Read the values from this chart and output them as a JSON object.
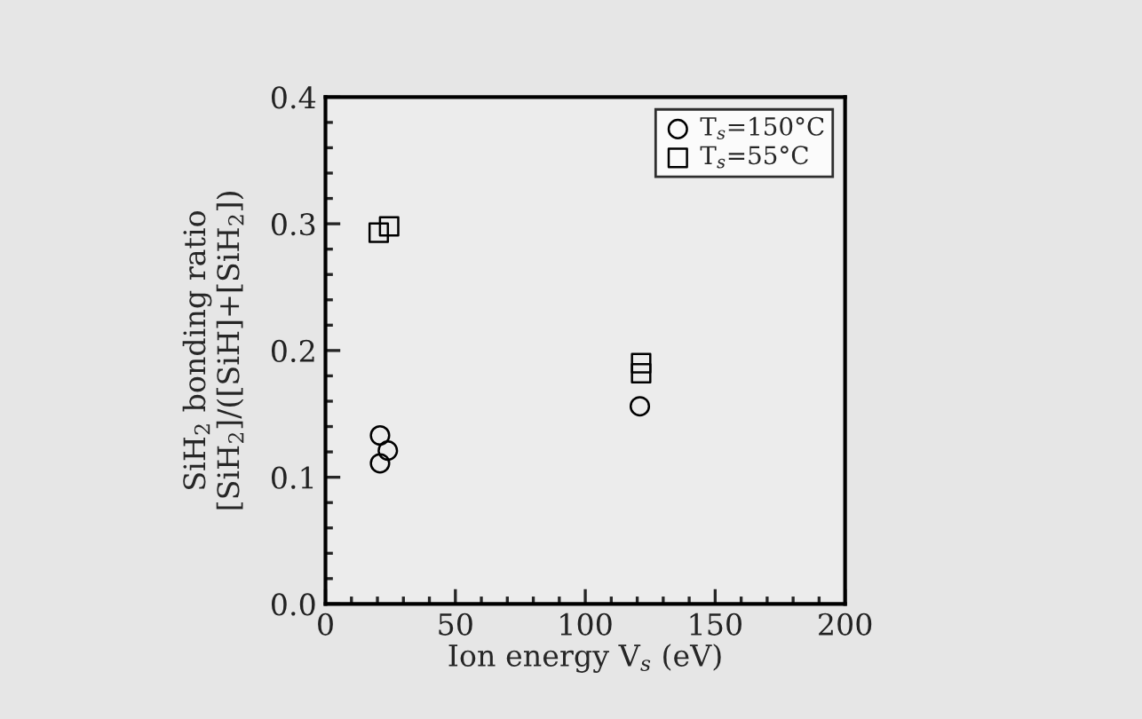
{
  "chart_data": {
    "type": "scatter",
    "xlabel": "Ion energy V$_{s}$ (eV)",
    "ylabel": "SiH$_{2}$ bonding ratio\n[SiH$_{2}$]/([SiH]+[SiH$_{2}$])",
    "series": [
      {
        "name": "T$_{s}$=150°C",
        "color": "#000000",
        "marker": "circle",
        "x": [
          21,
          24,
          21,
          121
        ],
        "values": [
          0.133,
          0.121,
          0.111,
          0.156
        ]
      },
      {
        "name": "T$_{s}$=55°C",
        "color": "#000000",
        "marker": "square",
        "x": [
          20.5,
          24.5,
          121.5,
          121.5
        ],
        "values": [
          0.293,
          0.298,
          0.182,
          0.19
        ]
      }
    ],
    "xlim": [
      0,
      200
    ],
    "xticks": [
      0,
      50,
      100,
      150,
      200
    ],
    "ylim": [
      0,
      0.4
    ],
    "yticks": [
      {
        "value": 0,
        "label": "0.0"
      },
      {
        "value": 0.1,
        "label": "0.1"
      },
      {
        "value": 0.2,
        "label": "0.2"
      },
      {
        "value": 0.3,
        "label": "0.3"
      },
      {
        "value": 0.4,
        "label": "0.4"
      }
    ],
    "grid": false,
    "legend": "top right"
  }
}
